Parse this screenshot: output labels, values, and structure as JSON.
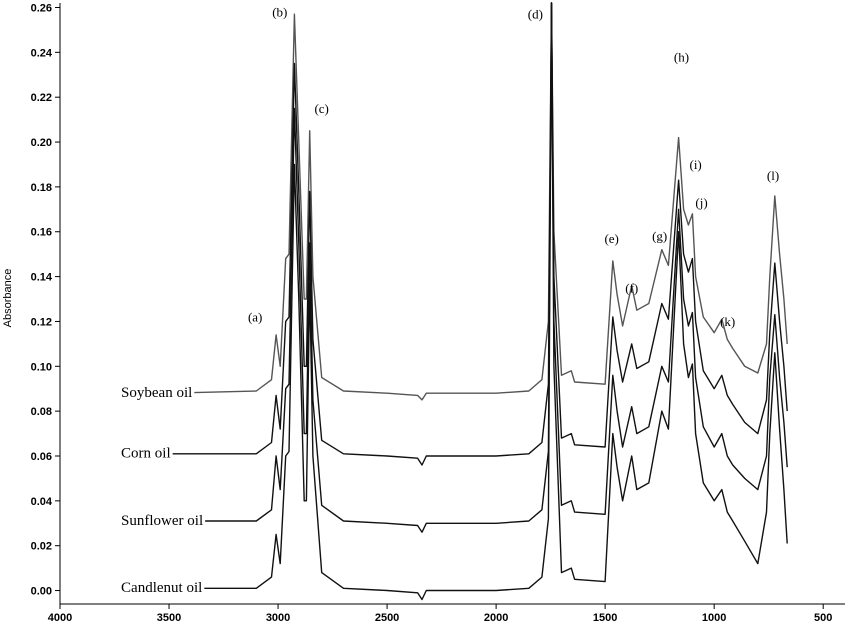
{
  "chart_data": {
    "type": "line",
    "title": "",
    "xlabel": "",
    "ylabel": "Absorbance",
    "xlim": [
      4000,
      400
    ],
    "ylim": [
      -0.006,
      0.262
    ],
    "x_reversed": true,
    "grid": false,
    "x_ticks": [
      4000,
      3500,
      3000,
      2500,
      2000,
      1500,
      1000,
      500
    ],
    "y_ticks": [
      0.0,
      0.02,
      0.04,
      0.06,
      0.08,
      0.1,
      0.12,
      0.14,
      0.16,
      0.18,
      0.2,
      0.22,
      0.24,
      0.26
    ],
    "x_tick_labels": [
      "4000",
      "3500",
      "3000",
      "2500",
      "2000",
      "1500",
      "1000",
      "500"
    ],
    "y_tick_labels": [
      "0.00",
      "0.02",
      "0.04",
      "0.06",
      "0.08",
      "0.10",
      "0.12",
      "0.14",
      "0.16",
      "0.18",
      "0.20",
      "0.22",
      "0.24",
      "0.26"
    ],
    "series": [
      {
        "name": "Soybean oil",
        "color": "#555555",
        "points": [
          [
            3500,
            0.088
          ],
          [
            3100,
            0.089
          ],
          [
            3030,
            0.094
          ],
          [
            3009,
            0.114
          ],
          [
            2990,
            0.1
          ],
          [
            2965,
            0.148
          ],
          [
            2950,
            0.15
          ],
          [
            2925,
            0.257
          ],
          [
            2905,
            0.2
          ],
          [
            2880,
            0.13
          ],
          [
            2870,
            0.13
          ],
          [
            2855,
            0.205
          ],
          [
            2840,
            0.14
          ],
          [
            2800,
            0.095
          ],
          [
            2700,
            0.089
          ],
          [
            2500,
            0.088
          ],
          [
            2360,
            0.087
          ],
          [
            2340,
            0.085
          ],
          [
            2320,
            0.088
          ],
          [
            2000,
            0.088
          ],
          [
            1850,
            0.089
          ],
          [
            1790,
            0.094
          ],
          [
            1760,
            0.12
          ],
          [
            1746,
            0.262
          ],
          [
            1735,
            0.16
          ],
          [
            1700,
            0.096
          ],
          [
            1655,
            0.098
          ],
          [
            1640,
            0.093
          ],
          [
            1500,
            0.092
          ],
          [
            1465,
            0.147
          ],
          [
            1445,
            0.132
          ],
          [
            1420,
            0.118
          ],
          [
            1378,
            0.136
          ],
          [
            1355,
            0.125
          ],
          [
            1300,
            0.128
          ],
          [
            1240,
            0.152
          ],
          [
            1210,
            0.145
          ],
          [
            1163,
            0.202
          ],
          [
            1140,
            0.17
          ],
          [
            1118,
            0.163
          ],
          [
            1100,
            0.168
          ],
          [
            1085,
            0.14
          ],
          [
            1050,
            0.122
          ],
          [
            1000,
            0.115
          ],
          [
            965,
            0.121
          ],
          [
            940,
            0.112
          ],
          [
            915,
            0.108
          ],
          [
            860,
            0.1
          ],
          [
            800,
            0.097
          ],
          [
            760,
            0.11
          ],
          [
            745,
            0.14
          ],
          [
            722,
            0.176
          ],
          [
            700,
            0.15
          ],
          [
            680,
            0.13
          ],
          [
            665,
            0.11
          ]
        ]
      },
      {
        "name": "Corn oil",
        "color": "#111111",
        "points": [
          [
            3500,
            0.061
          ],
          [
            3100,
            0.061
          ],
          [
            3030,
            0.066
          ],
          [
            3009,
            0.087
          ],
          [
            2990,
            0.072
          ],
          [
            2965,
            0.12
          ],
          [
            2950,
            0.122
          ],
          [
            2925,
            0.235
          ],
          [
            2905,
            0.178
          ],
          [
            2880,
            0.1
          ],
          [
            2870,
            0.1
          ],
          [
            2855,
            0.178
          ],
          [
            2840,
            0.112
          ],
          [
            2800,
            0.067
          ],
          [
            2700,
            0.061
          ],
          [
            2500,
            0.06
          ],
          [
            2360,
            0.059
          ],
          [
            2340,
            0.056
          ],
          [
            2320,
            0.06
          ],
          [
            2000,
            0.06
          ],
          [
            1850,
            0.061
          ],
          [
            1790,
            0.066
          ],
          [
            1760,
            0.092
          ],
          [
            1746,
            0.262
          ],
          [
            1735,
            0.14
          ],
          [
            1700,
            0.068
          ],
          [
            1655,
            0.07
          ],
          [
            1640,
            0.065
          ],
          [
            1500,
            0.064
          ],
          [
            1465,
            0.122
          ],
          [
            1445,
            0.107
          ],
          [
            1420,
            0.093
          ],
          [
            1378,
            0.11
          ],
          [
            1355,
            0.099
          ],
          [
            1300,
            0.102
          ],
          [
            1240,
            0.128
          ],
          [
            1210,
            0.121
          ],
          [
            1163,
            0.183
          ],
          [
            1140,
            0.15
          ],
          [
            1118,
            0.142
          ],
          [
            1100,
            0.148
          ],
          [
            1085,
            0.12
          ],
          [
            1050,
            0.098
          ],
          [
            1000,
            0.09
          ],
          [
            965,
            0.096
          ],
          [
            940,
            0.087
          ],
          [
            915,
            0.083
          ],
          [
            860,
            0.075
          ],
          [
            800,
            0.07
          ],
          [
            760,
            0.085
          ],
          [
            745,
            0.115
          ],
          [
            722,
            0.146
          ],
          [
            700,
            0.12
          ],
          [
            680,
            0.1
          ],
          [
            665,
            0.08
          ]
        ]
      },
      {
        "name": "Sunflower oil",
        "color": "#111111",
        "points": [
          [
            3500,
            0.031
          ],
          [
            3100,
            0.031
          ],
          [
            3030,
            0.036
          ],
          [
            3009,
            0.06
          ],
          [
            2990,
            0.045
          ],
          [
            2965,
            0.09
          ],
          [
            2950,
            0.092
          ],
          [
            2925,
            0.215
          ],
          [
            2905,
            0.155
          ],
          [
            2880,
            0.07
          ],
          [
            2870,
            0.07
          ],
          [
            2855,
            0.155
          ],
          [
            2840,
            0.085
          ],
          [
            2800,
            0.038
          ],
          [
            2700,
            0.031
          ],
          [
            2500,
            0.03
          ],
          [
            2360,
            0.029
          ],
          [
            2340,
            0.026
          ],
          [
            2320,
            0.03
          ],
          [
            2000,
            0.03
          ],
          [
            1850,
            0.031
          ],
          [
            1790,
            0.036
          ],
          [
            1760,
            0.062
          ],
          [
            1746,
            0.262
          ],
          [
            1735,
            0.12
          ],
          [
            1700,
            0.038
          ],
          [
            1655,
            0.04
          ],
          [
            1640,
            0.035
          ],
          [
            1500,
            0.034
          ],
          [
            1465,
            0.096
          ],
          [
            1445,
            0.08
          ],
          [
            1420,
            0.064
          ],
          [
            1378,
            0.082
          ],
          [
            1355,
            0.07
          ],
          [
            1300,
            0.073
          ],
          [
            1240,
            0.1
          ],
          [
            1210,
            0.093
          ],
          [
            1163,
            0.17
          ],
          [
            1140,
            0.13
          ],
          [
            1118,
            0.118
          ],
          [
            1100,
            0.124
          ],
          [
            1085,
            0.095
          ],
          [
            1050,
            0.073
          ],
          [
            1000,
            0.064
          ],
          [
            965,
            0.07
          ],
          [
            940,
            0.06
          ],
          [
            915,
            0.056
          ],
          [
            860,
            0.05
          ],
          [
            800,
            0.045
          ],
          [
            760,
            0.06
          ],
          [
            745,
            0.095
          ],
          [
            722,
            0.123
          ],
          [
            700,
            0.095
          ],
          [
            680,
            0.075
          ],
          [
            665,
            0.055
          ]
        ]
      },
      {
        "name": "Candlenut oil",
        "color": "#111111",
        "points": [
          [
            3500,
            0.001
          ],
          [
            3100,
            0.001
          ],
          [
            3030,
            0.006
          ],
          [
            3009,
            0.025
          ],
          [
            2990,
            0.012
          ],
          [
            2965,
            0.06
          ],
          [
            2950,
            0.062
          ],
          [
            2925,
            0.19
          ],
          [
            2905,
            0.13
          ],
          [
            2880,
            0.04
          ],
          [
            2870,
            0.04
          ],
          [
            2855,
            0.137
          ],
          [
            2840,
            0.06
          ],
          [
            2800,
            0.008
          ],
          [
            2700,
            0.001
          ],
          [
            2500,
            0.0
          ],
          [
            2360,
            -0.001
          ],
          [
            2340,
            -0.004
          ],
          [
            2320,
            0.0
          ],
          [
            2000,
            0.0
          ],
          [
            1850,
            0.001
          ],
          [
            1790,
            0.006
          ],
          [
            1760,
            0.032
          ],
          [
            1746,
            0.262
          ],
          [
            1735,
            0.1
          ],
          [
            1700,
            0.008
          ],
          [
            1655,
            0.01
          ],
          [
            1640,
            0.005
          ],
          [
            1500,
            0.004
          ],
          [
            1465,
            0.07
          ],
          [
            1445,
            0.055
          ],
          [
            1420,
            0.04
          ],
          [
            1378,
            0.06
          ],
          [
            1355,
            0.045
          ],
          [
            1300,
            0.048
          ],
          [
            1240,
            0.08
          ],
          [
            1210,
            0.072
          ],
          [
            1163,
            0.16
          ],
          [
            1140,
            0.11
          ],
          [
            1118,
            0.095
          ],
          [
            1100,
            0.101
          ],
          [
            1085,
            0.07
          ],
          [
            1050,
            0.048
          ],
          [
            1000,
            0.04
          ],
          [
            965,
            0.045
          ],
          [
            940,
            0.035
          ],
          [
            915,
            0.031
          ],
          [
            860,
            0.022
          ],
          [
            800,
            0.012
          ],
          [
            760,
            0.035
          ],
          [
            745,
            0.07
          ],
          [
            722,
            0.106
          ],
          [
            700,
            0.072
          ],
          [
            680,
            0.045
          ],
          [
            665,
            0.021
          ]
        ]
      }
    ],
    "series_labels": [
      {
        "text": "Soybean oil",
        "x": 3720,
        "y": 0.0885
      },
      {
        "text": "Corn oil",
        "x": 3720,
        "y": 0.0615
      },
      {
        "text": "Sunflower oil",
        "x": 3720,
        "y": 0.0315
      },
      {
        "text": "Candlenut oil",
        "x": 3720,
        "y": 0.0015
      }
    ],
    "annotations": [
      {
        "text": "(a)",
        "x": 3105,
        "y": 0.12
      },
      {
        "text": "(b)",
        "x": 2992,
        "y": 0.256
      },
      {
        "text": "(c)",
        "x": 2800,
        "y": 0.213
      },
      {
        "text": "(d)",
        "x": 1820,
        "y": 0.255
      },
      {
        "text": "(e)",
        "x": 1470,
        "y": 0.155
      },
      {
        "text": "(f)",
        "x": 1378,
        "y": 0.133
      },
      {
        "text": "(g)",
        "x": 1250,
        "y": 0.156
      },
      {
        "text": "(h)",
        "x": 1150,
        "y": 0.236
      },
      {
        "text": "(i)",
        "x": 1085,
        "y": 0.188
      },
      {
        "text": "(j)",
        "x": 1058,
        "y": 0.171
      },
      {
        "text": "(k)",
        "x": 938,
        "y": 0.118
      },
      {
        "text": "(l)",
        "x": 730,
        "y": 0.183
      }
    ]
  }
}
